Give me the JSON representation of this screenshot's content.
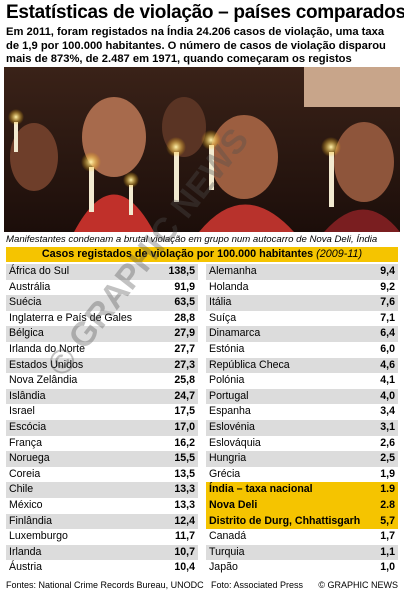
{
  "header": {
    "title": "Estatísticas de violação – países comparados",
    "intro": "Em 2011, foram registados na Índia 24.206 casos de violação, uma taxa de 1,9 por 100.000 habitantes. O número de casos de violação disparou mais de 873%, de 2.487 em 1971, quando começaram os registos"
  },
  "photo": {
    "caption": "Manifestantes condenam a brutal violação em grupo num autocarro de Nova Deli, Índia"
  },
  "table": {
    "title": "Casos registados de violação por 100.000 habitantes",
    "period": "(2009-11)",
    "left": [
      [
        "África do Sul",
        "138,5"
      ],
      [
        "Austrália",
        "91,9"
      ],
      [
        "Suécia",
        "63,5"
      ],
      [
        "Inglaterra e País de Gales",
        "28,8"
      ],
      [
        "Bélgica",
        "27,9"
      ],
      [
        "Irlanda do Norte",
        "27,7"
      ],
      [
        "Estados Unidos",
        "27,3"
      ],
      [
        "Nova Zelândia",
        "25,8"
      ],
      [
        "Islândia",
        "24,7"
      ],
      [
        "Israel",
        "17,5"
      ],
      [
        "Escócia",
        "17,0"
      ],
      [
        "França",
        "16,2"
      ],
      [
        "Noruega",
        "15,5"
      ],
      [
        "Coreia",
        "13,5"
      ],
      [
        "Chile",
        "13,3"
      ],
      [
        "México",
        "13,3"
      ],
      [
        "Finlândia",
        "12,4"
      ],
      [
        "Luxemburgo",
        "11,7"
      ],
      [
        "Irlanda",
        "10,7"
      ],
      [
        "Áustria",
        "10,4"
      ]
    ],
    "right_top": [
      [
        "Alemanha",
        "9,4"
      ],
      [
        "Holanda",
        "9,2"
      ],
      [
        "Itália",
        "7,6"
      ],
      [
        "Suíça",
        "7,1"
      ],
      [
        "Dinamarca",
        "6,4"
      ],
      [
        "Estónia",
        "6,0"
      ],
      [
        "República Checa",
        "4,6"
      ],
      [
        "Polónia",
        "4,1"
      ],
      [
        "Portugal",
        "4,0"
      ],
      [
        "Espanha",
        "3,4"
      ],
      [
        "Eslovénia",
        "3,1"
      ],
      [
        "Eslováquia",
        "2,6"
      ],
      [
        "Hungria",
        "2,5"
      ],
      [
        "Grécia",
        "1,9"
      ]
    ],
    "india": [
      [
        "Índia – taxa nacional",
        "1.9"
      ],
      [
        "Nova Deli",
        "2.8"
      ],
      [
        "Distrito de Durg, Chhattisgarh",
        "5,7"
      ]
    ],
    "right_bottom": [
      [
        "Canadá",
        "1,7"
      ],
      [
        "Turquia",
        "1,1"
      ],
      [
        "Japão",
        "1,0"
      ]
    ]
  },
  "footer": {
    "sources": "Fontes: National Crime Records Bureau, UNODC",
    "photo_credit": "Foto: Associated Press",
    "copyright": "© GRAPHIC NEWS"
  },
  "watermark": "© GRAPHIC NEWS"
}
